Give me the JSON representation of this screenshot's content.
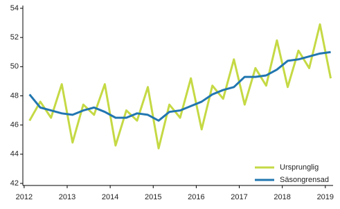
{
  "chart_data": {
    "type": "line",
    "x": [
      2012.125,
      2012.375,
      2012.625,
      2012.875,
      2013.125,
      2013.375,
      2013.625,
      2013.875,
      2014.125,
      2014.375,
      2014.625,
      2014.875,
      2015.125,
      2015.375,
      2015.625,
      2015.875,
      2016.125,
      2016.375,
      2016.625,
      2016.875,
      2017.125,
      2017.375,
      2017.625,
      2017.875,
      2018.125,
      2018.375,
      2018.625,
      2018.875,
      2019.125
    ],
    "series": [
      {
        "name": "Ursprunglig",
        "color": "#c5d944",
        "values": [
          46.3,
          47.6,
          46.5,
          48.8,
          44.8,
          47.4,
          46.7,
          48.8,
          44.6,
          47.0,
          46.3,
          48.6,
          44.4,
          47.4,
          46.5,
          49.2,
          45.7,
          48.7,
          47.8,
          50.5,
          47.4,
          49.9,
          48.7,
          51.8,
          48.6,
          51.1,
          49.9,
          52.9,
          49.2
        ]
      },
      {
        "name": "Säsongrensad",
        "color": "#2176b0",
        "values": [
          48.1,
          47.2,
          47.0,
          46.8,
          46.7,
          47.0,
          47.2,
          46.9,
          46.5,
          46.5,
          46.8,
          46.7,
          46.3,
          46.9,
          47.0,
          47.3,
          47.6,
          48.1,
          48.4,
          48.6,
          49.3,
          49.3,
          49.4,
          49.8,
          50.4,
          50.5,
          50.7,
          50.9,
          51.0
        ]
      }
    ],
    "xlim": [
      2011.97,
      2019.18
    ],
    "xticks": [
      2012,
      2013,
      2014,
      2015,
      2016,
      2017,
      2018,
      2019
    ],
    "ylim": [
      42,
      54
    ],
    "yticks": [
      42,
      44,
      46,
      48,
      50,
      52,
      54
    ],
    "legend": "lower-right"
  }
}
